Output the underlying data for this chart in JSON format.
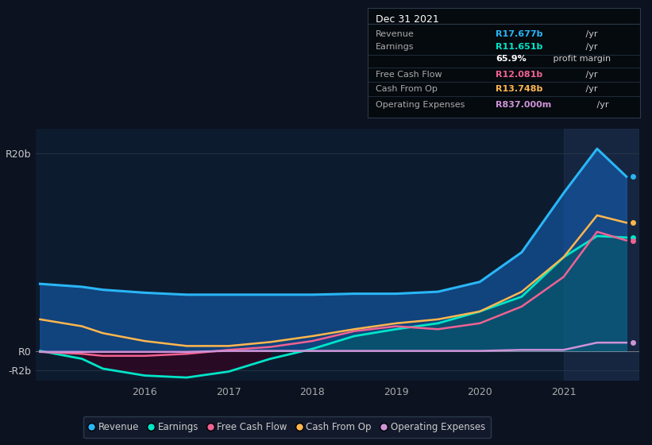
{
  "background_color": "#0c1220",
  "plot_bg_color": "#0d1b2e",
  "title": "Dec 31 2021",
  "info_box_rows": [
    {
      "label": "Revenue",
      "value": "R17.677b",
      "unit": " /yr",
      "value_color": "#29b6f6"
    },
    {
      "label": "Earnings",
      "value": "R11.651b",
      "unit": " /yr",
      "value_color": "#00e5c8"
    },
    {
      "label": "",
      "value": "65.9%",
      "unit": " profit margin",
      "value_color": "#ffffff"
    },
    {
      "label": "Free Cash Flow",
      "value": "R12.081b",
      "unit": " /yr",
      "value_color": "#f06292"
    },
    {
      "label": "Cash From Op",
      "value": "R13.748b",
      "unit": " /yr",
      "value_color": "#ffb74d"
    },
    {
      "label": "Operating Expenses",
      "value": "R837.000m",
      "unit": " /yr",
      "value_color": "#ce93d8"
    }
  ],
  "x_years": [
    2014.75,
    2015.25,
    2015.5,
    2016.0,
    2016.5,
    2017.0,
    2017.5,
    2018.0,
    2018.5,
    2019.0,
    2019.5,
    2020.0,
    2020.5,
    2021.0,
    2021.4,
    2021.75
  ],
  "revenue": [
    6.8,
    6.5,
    6.2,
    5.9,
    5.7,
    5.7,
    5.7,
    5.7,
    5.8,
    5.8,
    6.0,
    7.0,
    10.0,
    16.0,
    20.5,
    17.677
  ],
  "earnings": [
    0.0,
    -0.8,
    -1.8,
    -2.5,
    -2.7,
    -2.1,
    -0.8,
    0.2,
    1.5,
    2.2,
    2.8,
    4.0,
    5.5,
    9.5,
    11.651,
    11.5
  ],
  "free_cash_flow": [
    -0.1,
    -0.3,
    -0.5,
    -0.5,
    -0.3,
    0.1,
    0.4,
    1.0,
    2.0,
    2.5,
    2.2,
    2.8,
    4.5,
    7.5,
    12.081,
    11.2
  ],
  "cash_from_op": [
    3.2,
    2.5,
    1.8,
    1.0,
    0.5,
    0.5,
    0.9,
    1.5,
    2.2,
    2.8,
    3.2,
    4.0,
    6.0,
    9.5,
    13.748,
    13.0
  ],
  "operating_exp": [
    -0.1,
    -0.1,
    -0.1,
    -0.1,
    -0.1,
    0.0,
    0.0,
    0.0,
    0.0,
    0.0,
    0.0,
    0.0,
    0.1,
    0.1,
    0.837,
    0.837
  ],
  "ylim": [
    -3.0,
    22.5
  ],
  "yticks": [
    -2,
    0,
    20
  ],
  "ytick_labels": [
    "-R2b",
    "R0",
    "R20b"
  ],
  "xtick_years": [
    2016,
    2017,
    2018,
    2019,
    2020,
    2021
  ],
  "highlight_x_start": 2021.0,
  "colors": {
    "revenue": "#29b6f6",
    "earnings": "#00e5c8",
    "free_cash_flow": "#f06292",
    "cash_from_op": "#ffb74d",
    "operating_exp": "#ce93d8"
  },
  "legend_items": [
    {
      "label": "Revenue",
      "color": "#29b6f6"
    },
    {
      "label": "Earnings",
      "color": "#00e5c8"
    },
    {
      "label": "Free Cash Flow",
      "color": "#f06292"
    },
    {
      "label": "Cash From Op",
      "color": "#ffb74d"
    },
    {
      "label": "Operating Expenses",
      "color": "#ce93d8"
    }
  ]
}
